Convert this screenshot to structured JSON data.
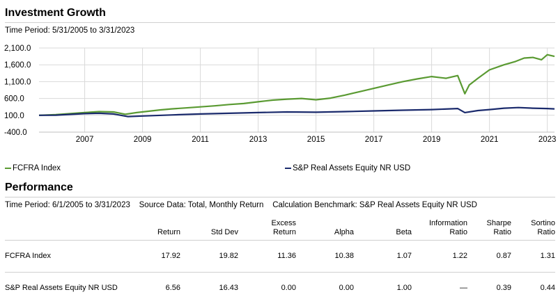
{
  "growth": {
    "title": "Investment Growth",
    "period": "Time Period: 5/31/2005 to 3/31/2023"
  },
  "legend": [
    {
      "label": "FCFRA Index",
      "color": "#5a9a32"
    },
    {
      "label": "S&P Real Assets Equity NR USD",
      "color": "#1a2a6c"
    }
  ],
  "chart_data": {
    "type": "line",
    "ylim": [
      -400,
      2100
    ],
    "yticks": [
      2100,
      1600,
      1100,
      600,
      100,
      -400
    ],
    "ytick_labels": [
      "2,100.0",
      "1,600.0",
      "1,100.0",
      "600.0",
      "100.0",
      "-400.0"
    ],
    "xlim": [
      2005.42,
      2023.25
    ],
    "xticks": [
      2007,
      2009,
      2011,
      2013,
      2015,
      2017,
      2019,
      2021,
      2023
    ],
    "xtick_labels": [
      "2007",
      "2009",
      "2011",
      "2013",
      "2015",
      "2017",
      "2019",
      "2021",
      "2023"
    ],
    "grid": true,
    "series": [
      {
        "name": "FCFRA Index",
        "color": "#5a9a32",
        "x": [
          2005.42,
          2006.0,
          2006.5,
          2007.0,
          2007.5,
          2008.0,
          2008.4,
          2008.8,
          2009.2,
          2009.6,
          2010.0,
          2010.5,
          2011.0,
          2011.5,
          2012.0,
          2012.5,
          2013.0,
          2013.5,
          2014.0,
          2014.5,
          2015.0,
          2015.5,
          2016.0,
          2016.5,
          2017.0,
          2017.5,
          2018.0,
          2018.5,
          2019.0,
          2019.5,
          2019.9,
          2020.15,
          2020.3,
          2020.6,
          2021.0,
          2021.5,
          2021.9,
          2022.2,
          2022.5,
          2022.8,
          2023.0,
          2023.25
        ],
        "y": [
          100,
          120,
          150,
          180,
          210,
          200,
          130,
          180,
          220,
          260,
          290,
          320,
          350,
          380,
          420,
          450,
          500,
          550,
          580,
          600,
          560,
          610,
          700,
          800,
          900,
          1000,
          1100,
          1180,
          1250,
          1200,
          1280,
          740,
          1000,
          1200,
          1450,
          1600,
          1700,
          1800,
          1820,
          1750,
          1900,
          1850
        ]
      },
      {
        "name": "S&P Real Assets Equity NR USD",
        "color": "#1a2a6c",
        "x": [
          2005.42,
          2006.0,
          2007.0,
          2007.5,
          2008.0,
          2008.5,
          2009.0,
          2010.0,
          2011.0,
          2012.0,
          2013.0,
          2014.0,
          2015.0,
          2016.0,
          2017.0,
          2018.0,
          2019.0,
          2019.9,
          2020.15,
          2020.6,
          2021.0,
          2021.5,
          2022.0,
          2022.5,
          2023.0,
          2023.25
        ],
        "y": [
          100,
          105,
          150,
          160,
          140,
          60,
          80,
          110,
          140,
          160,
          180,
          200,
          190,
          210,
          230,
          250,
          270,
          300,
          180,
          240,
          270,
          310,
          330,
          310,
          300,
          290
        ]
      }
    ]
  },
  "performance": {
    "title": "Performance",
    "subtitle": "Time Period: 6/1/2005 to 3/31/2023    Source Data: Total, Monthly Return    Calculation Benchmark: S&P Real Assets Equity NR USD",
    "columns": [
      [
        "Return"
      ],
      [
        "Std Dev"
      ],
      [
        "Excess",
        "Return"
      ],
      [
        "Alpha"
      ],
      [
        "Beta"
      ],
      [
        "Information",
        "Ratio"
      ],
      [
        "Sharpe",
        "Ratio"
      ],
      [
        "Sortino",
        "Ratio"
      ]
    ],
    "rows": [
      {
        "name": "FCFRA Index",
        "values": [
          "17.92",
          "19.82",
          "11.36",
          "10.38",
          "1.07",
          "1.22",
          "0.87",
          "1.31"
        ]
      },
      {
        "name": "S&P Real Assets Equity NR USD",
        "values": [
          "6.56",
          "16.43",
          "0.00",
          "0.00",
          "1.00",
          "—",
          "0.39",
          "0.44"
        ]
      }
    ]
  }
}
